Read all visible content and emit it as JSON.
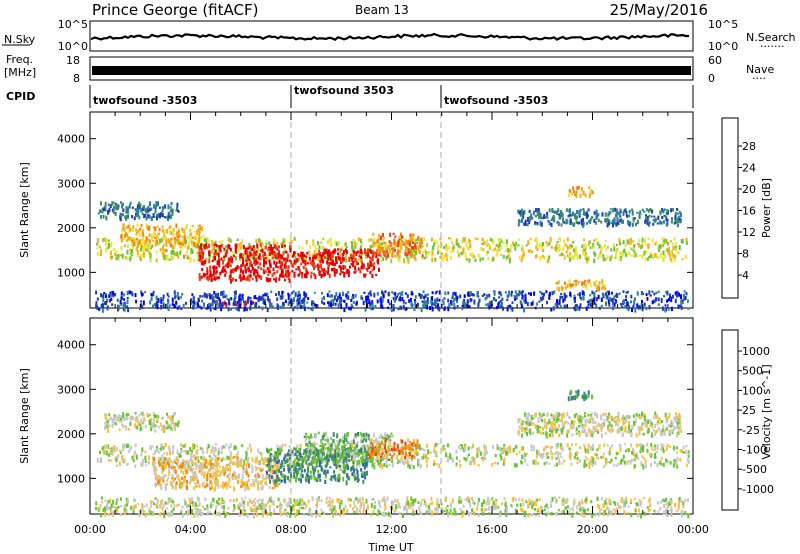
{
  "header": {
    "title": "Prince George (fitACF)",
    "beam": "Beam 13",
    "date": "25/May/2016"
  },
  "top_panels": {
    "nsky_label": "N.Sky",
    "nsky_ticks": [
      "10^5",
      "10^0"
    ],
    "nsearch_label": "N.Search",
    "nsearch_ticks": [
      "10^5",
      "10^0"
    ],
    "nsearch_dots": "·······",
    "freq_label_line1": "Freq.",
    "freq_label_line2": "[MHz]",
    "freq_ticks": [
      "18",
      "8"
    ],
    "nave_label": "Nave",
    "nave_ticks": [
      "60",
      "0"
    ],
    "nave_dots": "····",
    "cpid_label": "CPID",
    "cpid_segments": [
      {
        "label": "twofsound -3503",
        "start_hour": 0,
        "end_hour": 8
      },
      {
        "label": "twofsound 3503",
        "start_hour": 8,
        "end_hour": 14
      },
      {
        "label": "twofsound -3503",
        "start_hour": 14,
        "end_hour": 24
      }
    ]
  },
  "chart_data": [
    {
      "type": "heatmap",
      "name": "power",
      "ylabel": "Slant Range [km]",
      "yticks": [
        1000,
        2000,
        3000,
        4000
      ],
      "ylim": [
        200,
        4600
      ],
      "xlim": [
        0,
        24
      ],
      "xticks": [
        "00:00",
        "04:00",
        "08:00",
        "12:00",
        "16:00",
        "20:00",
        "00:00"
      ],
      "colorbar": {
        "label": "Power [dB]",
        "ticks": [
          "28",
          "24",
          "20",
          "16",
          "12",
          "8",
          "4"
        ],
        "colors": [
          "#0000ff",
          "#1e3fb0",
          "#2f7f9c",
          "#3e8e60",
          "#66c430",
          "#e6e63c",
          "#f2b01e",
          "#f77d19",
          "#f0401a",
          "#e60000"
        ]
      },
      "regions": [
        {
          "x": [
            0.2,
            23.8
          ],
          "y": [
            1300,
            1800
          ],
          "level": 5
        },
        {
          "x": [
            1.2,
            4.5
          ],
          "y": [
            1600,
            2100
          ],
          "level": 6
        },
        {
          "x": [
            4.3,
            8.0
          ],
          "y": [
            850,
            1650
          ],
          "level": 9
        },
        {
          "x": [
            8.0,
            11.5
          ],
          "y": [
            950,
            1550
          ],
          "level": 9
        },
        {
          "x": [
            11.2,
            13.2
          ],
          "y": [
            1400,
            1900
          ],
          "level": 7
        },
        {
          "x": [
            0.3,
            3.5
          ],
          "y": [
            2250,
            2600
          ],
          "level": 2
        },
        {
          "x": [
            17.0,
            23.5
          ],
          "y": [
            2100,
            2450
          ],
          "level": 2
        },
        {
          "x": [
            19.0,
            20.0
          ],
          "y": [
            2750,
            2950
          ],
          "level": 6
        },
        {
          "x": [
            18.5,
            20.5
          ],
          "y": [
            650,
            850
          ],
          "level": 6
        },
        {
          "x": [
            5.0,
            6.5
          ],
          "y": [
            300,
            420
          ],
          "level": 9
        },
        {
          "x": [
            0.2,
            23.8
          ],
          "y": [
            200,
            600
          ],
          "level": 1
        }
      ]
    },
    {
      "type": "heatmap",
      "name": "velocity",
      "ylabel": "Slant Range [km]",
      "yticks": [
        1000,
        2000,
        3000,
        4000
      ],
      "ylim": [
        200,
        4600
      ],
      "xlim": [
        0,
        24
      ],
      "xticks": [
        "00:00",
        "04:00",
        "08:00",
        "12:00",
        "16:00",
        "20:00",
        "00:00"
      ],
      "xlabel": "Time UT",
      "colorbar": {
        "label": "Velocity [m s^-1]",
        "ticks": [
          "1000",
          "500",
          "100",
          "25",
          "-25",
          "-100",
          "-500",
          "-1000"
        ],
        "colors": [
          "#2233c8",
          "#2f66b0",
          "#3e8e60",
          "#66c430",
          "#c8c8c8",
          "#f7c040",
          "#f08c10",
          "#f04010",
          "#e60000"
        ]
      },
      "regions": [
        {
          "x": [
            0.2,
            23.8
          ],
          "y": [
            1300,
            1800
          ],
          "level": 4
        },
        {
          "x": [
            0.5,
            3.5
          ],
          "y": [
            2100,
            2500
          ],
          "level": 4
        },
        {
          "x": [
            17.0,
            23.5
          ],
          "y": [
            2000,
            2500
          ],
          "level": 4
        },
        {
          "x": [
            2.5,
            7.5
          ],
          "y": [
            800,
            1500
          ],
          "level": 5
        },
        {
          "x": [
            7.0,
            11.0
          ],
          "y": [
            950,
            1700
          ],
          "level": 2
        },
        {
          "x": [
            8.5,
            12.0
          ],
          "y": [
            1400,
            2050
          ],
          "level": 3
        },
        {
          "x": [
            11.0,
            13.0
          ],
          "y": [
            1500,
            1900
          ],
          "level": 6
        },
        {
          "x": [
            19.0,
            20.0
          ],
          "y": [
            2800,
            3000
          ],
          "level": 2
        },
        {
          "x": [
            0.2,
            23.8
          ],
          "y": [
            200,
            600
          ],
          "level": 4
        }
      ]
    }
  ]
}
